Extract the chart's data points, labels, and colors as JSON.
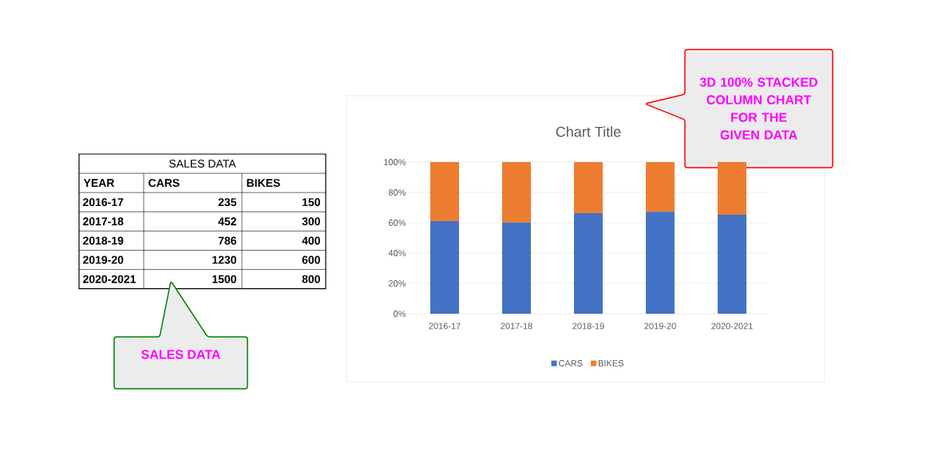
{
  "chart_data": {
    "type": "bar",
    "title": "Chart Title",
    "categories": [
      "2016-17",
      "2017-18",
      "2018-19",
      "2019-20",
      "2020-2021"
    ],
    "series": [
      {
        "name": "CARS",
        "color": "#4472c4",
        "values": [
          61.0,
          60.1,
          66.3,
          67.2,
          65.2
        ]
      },
      {
        "name": "BIKES",
        "color": "#ed7d31",
        "values": [
          39.0,
          39.9,
          33.7,
          32.8,
          34.8
        ]
      }
    ],
    "stacked": true,
    "ylim": [
      0,
      100
    ],
    "yticks": [
      {
        "value": 0,
        "label": "0%"
      },
      {
        "value": 20,
        "label": "20%"
      },
      {
        "value": 40,
        "label": "40%"
      },
      {
        "value": 60,
        "label": "60%"
      },
      {
        "value": 80,
        "label": "80%"
      },
      {
        "value": 100,
        "label": "100%"
      }
    ],
    "grid": "y",
    "legend": "bottom",
    "annotations": [
      "SALES DATA",
      "YEAR",
      "235",
      "150",
      "452",
      "300",
      "786",
      "400",
      "1230",
      "600",
      "1500",
      "800",
      "3D 100% STACKED COLUMN CHART FOR THE GIVEN DATA",
      "SALES DATA"
    ]
  }
}
